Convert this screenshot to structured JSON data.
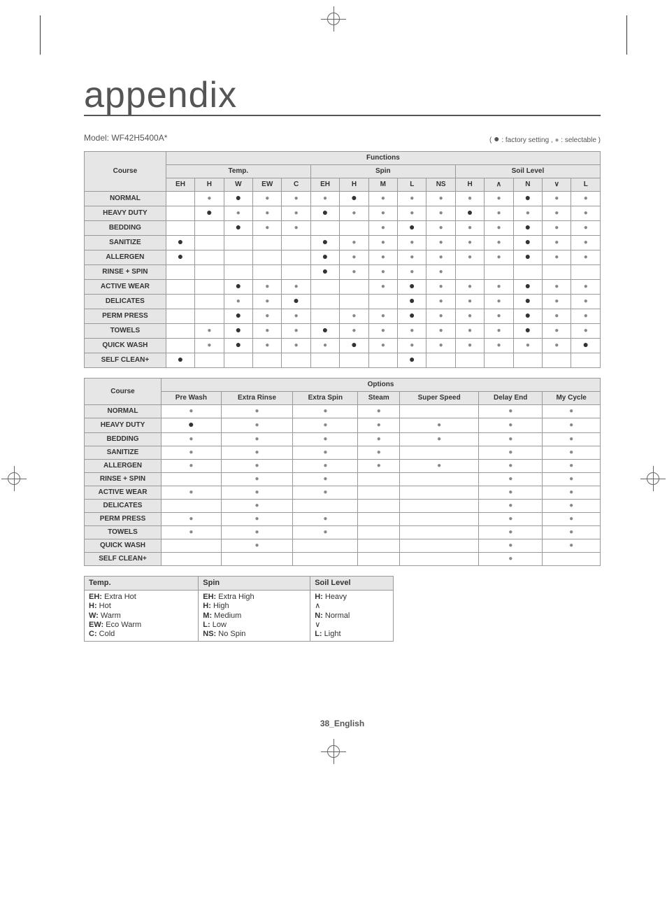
{
  "heading": "appendix",
  "model_label": "Model: WF42H5400A*",
  "legend_inline": "( ● : factory setting , ● : selectable )",
  "footer": "38_English",
  "table1": {
    "top_header": "Functions",
    "group_headers": [
      "Course",
      "Temp.",
      "Spin",
      "Soil Level"
    ],
    "sub_headers": [
      "EH",
      "H",
      "W",
      "EW",
      "C",
      "EH",
      "H",
      "M",
      "L",
      "NS",
      "H",
      "∧",
      "N",
      "∨",
      "L"
    ],
    "rows": [
      {
        "name": "NORMAL",
        "cells": [
          "",
          "s",
          "f",
          "s",
          "s",
          "s",
          "f",
          "s",
          "s",
          "s",
          "s",
          "s",
          "f",
          "s",
          "s"
        ]
      },
      {
        "name": "HEAVY DUTY",
        "cells": [
          "",
          "f",
          "s",
          "s",
          "s",
          "f",
          "s",
          "s",
          "s",
          "s",
          "f",
          "s",
          "s",
          "s",
          "s"
        ]
      },
      {
        "name": "BEDDING",
        "cells": [
          "",
          "",
          "f",
          "s",
          "s",
          "",
          "",
          "s",
          "f",
          "s",
          "s",
          "s",
          "f",
          "s",
          "s"
        ]
      },
      {
        "name": "SANITIZE",
        "cells": [
          "f",
          "",
          "",
          "",
          "",
          "f",
          "s",
          "s",
          "s",
          "s",
          "s",
          "s",
          "f",
          "s",
          "s"
        ]
      },
      {
        "name": "ALLERGEN",
        "cells": [
          "f",
          "",
          "",
          "",
          "",
          "f",
          "s",
          "s",
          "s",
          "s",
          "s",
          "s",
          "f",
          "s",
          "s"
        ]
      },
      {
        "name": "RINSE + SPIN",
        "cells": [
          "",
          "",
          "",
          "",
          "",
          "f",
          "s",
          "s",
          "s",
          "s",
          "",
          "",
          "",
          "",
          ""
        ]
      },
      {
        "name": "ACTIVE WEAR",
        "cells": [
          "",
          "",
          "f",
          "s",
          "s",
          "",
          "",
          "s",
          "f",
          "s",
          "s",
          "s",
          "f",
          "s",
          "s"
        ]
      },
      {
        "name": "DELICATES",
        "cells": [
          "",
          "",
          "s",
          "s",
          "f",
          "",
          "",
          "",
          "f",
          "s",
          "s",
          "s",
          "f",
          "s",
          "s"
        ]
      },
      {
        "name": "PERM PRESS",
        "cells": [
          "",
          "",
          "f",
          "s",
          "s",
          "",
          "s",
          "s",
          "f",
          "s",
          "s",
          "s",
          "f",
          "s",
          "s"
        ]
      },
      {
        "name": "TOWELS",
        "cells": [
          "",
          "s",
          "f",
          "s",
          "s",
          "f",
          "s",
          "s",
          "s",
          "s",
          "s",
          "s",
          "f",
          "s",
          "s"
        ]
      },
      {
        "name": "QUICK WASH",
        "cells": [
          "",
          "s",
          "f",
          "s",
          "s",
          "s",
          "f",
          "s",
          "s",
          "s",
          "s",
          "s",
          "s",
          "s",
          "f"
        ]
      },
      {
        "name": "SELF CLEAN+",
        "cells": [
          "f",
          "",
          "",
          "",
          "",
          "",
          "",
          "",
          "f",
          "",
          "",
          "",
          "",
          "",
          ""
        ]
      }
    ]
  },
  "table2": {
    "top_header": "Options",
    "headers": [
      "Course",
      "Pre Wash",
      "Extra Rinse",
      "Extra Spin",
      "Steam",
      "Super Speed",
      "Delay End",
      "My Cycle"
    ],
    "rows": [
      {
        "name": "NORMAL",
        "cells": [
          "s",
          "s",
          "s",
          "s",
          "",
          "s",
          "s"
        ]
      },
      {
        "name": "HEAVY DUTY",
        "cells": [
          "f",
          "s",
          "s",
          "s",
          "s",
          "s",
          "s"
        ]
      },
      {
        "name": "BEDDING",
        "cells": [
          "s",
          "s",
          "s",
          "s",
          "s",
          "s",
          "s"
        ]
      },
      {
        "name": "SANITIZE",
        "cells": [
          "s",
          "s",
          "s",
          "s",
          "",
          "s",
          "s"
        ]
      },
      {
        "name": "ALLERGEN",
        "cells": [
          "s",
          "s",
          "s",
          "s",
          "s",
          "s",
          "s"
        ]
      },
      {
        "name": "RINSE + SPIN",
        "cells": [
          "",
          "s",
          "s",
          "",
          "",
          "s",
          "s"
        ]
      },
      {
        "name": "ACTIVE WEAR",
        "cells": [
          "s",
          "s",
          "s",
          "",
          "",
          "s",
          "s"
        ]
      },
      {
        "name": "DELICATES",
        "cells": [
          "",
          "s",
          "",
          "",
          "",
          "s",
          "s"
        ]
      },
      {
        "name": "PERM PRESS",
        "cells": [
          "s",
          "s",
          "s",
          "",
          "",
          "s",
          "s"
        ]
      },
      {
        "name": "TOWELS",
        "cells": [
          "s",
          "s",
          "s",
          "",
          "",
          "s",
          "s"
        ]
      },
      {
        "name": "QUICK WASH",
        "cells": [
          "",
          "s",
          "",
          "",
          "",
          "s",
          "s"
        ]
      },
      {
        "name": "SELF CLEAN+",
        "cells": [
          "",
          "",
          "",
          "",
          "",
          "s",
          ""
        ]
      }
    ]
  },
  "legend": {
    "headers": [
      "Temp.",
      "Spin",
      "Soil Level"
    ],
    "rows": [
      [
        [
          "EH:",
          " Extra Hot"
        ],
        [
          "EH:",
          " Extra High"
        ],
        [
          "H:",
          " Heavy"
        ]
      ],
      [
        [
          "H:",
          " Hot"
        ],
        [
          "H:",
          " High"
        ],
        [
          "",
          ""
        ]
      ],
      [
        [
          "W:",
          " Warm"
        ],
        [
          "M:",
          " Medium"
        ],
        [
          "N:",
          " Normal"
        ]
      ],
      [
        [
          "EW:",
          " Eco Warm"
        ],
        [
          "L:",
          " Low"
        ],
        [
          "",
          ""
        ]
      ],
      [
        [
          "C:",
          " Cold"
        ],
        [
          "NS:",
          " No Spin"
        ],
        [
          "L:",
          " Light"
        ]
      ]
    ],
    "soil_symbols": [
      "",
      "∧",
      "",
      "∨",
      ""
    ]
  }
}
